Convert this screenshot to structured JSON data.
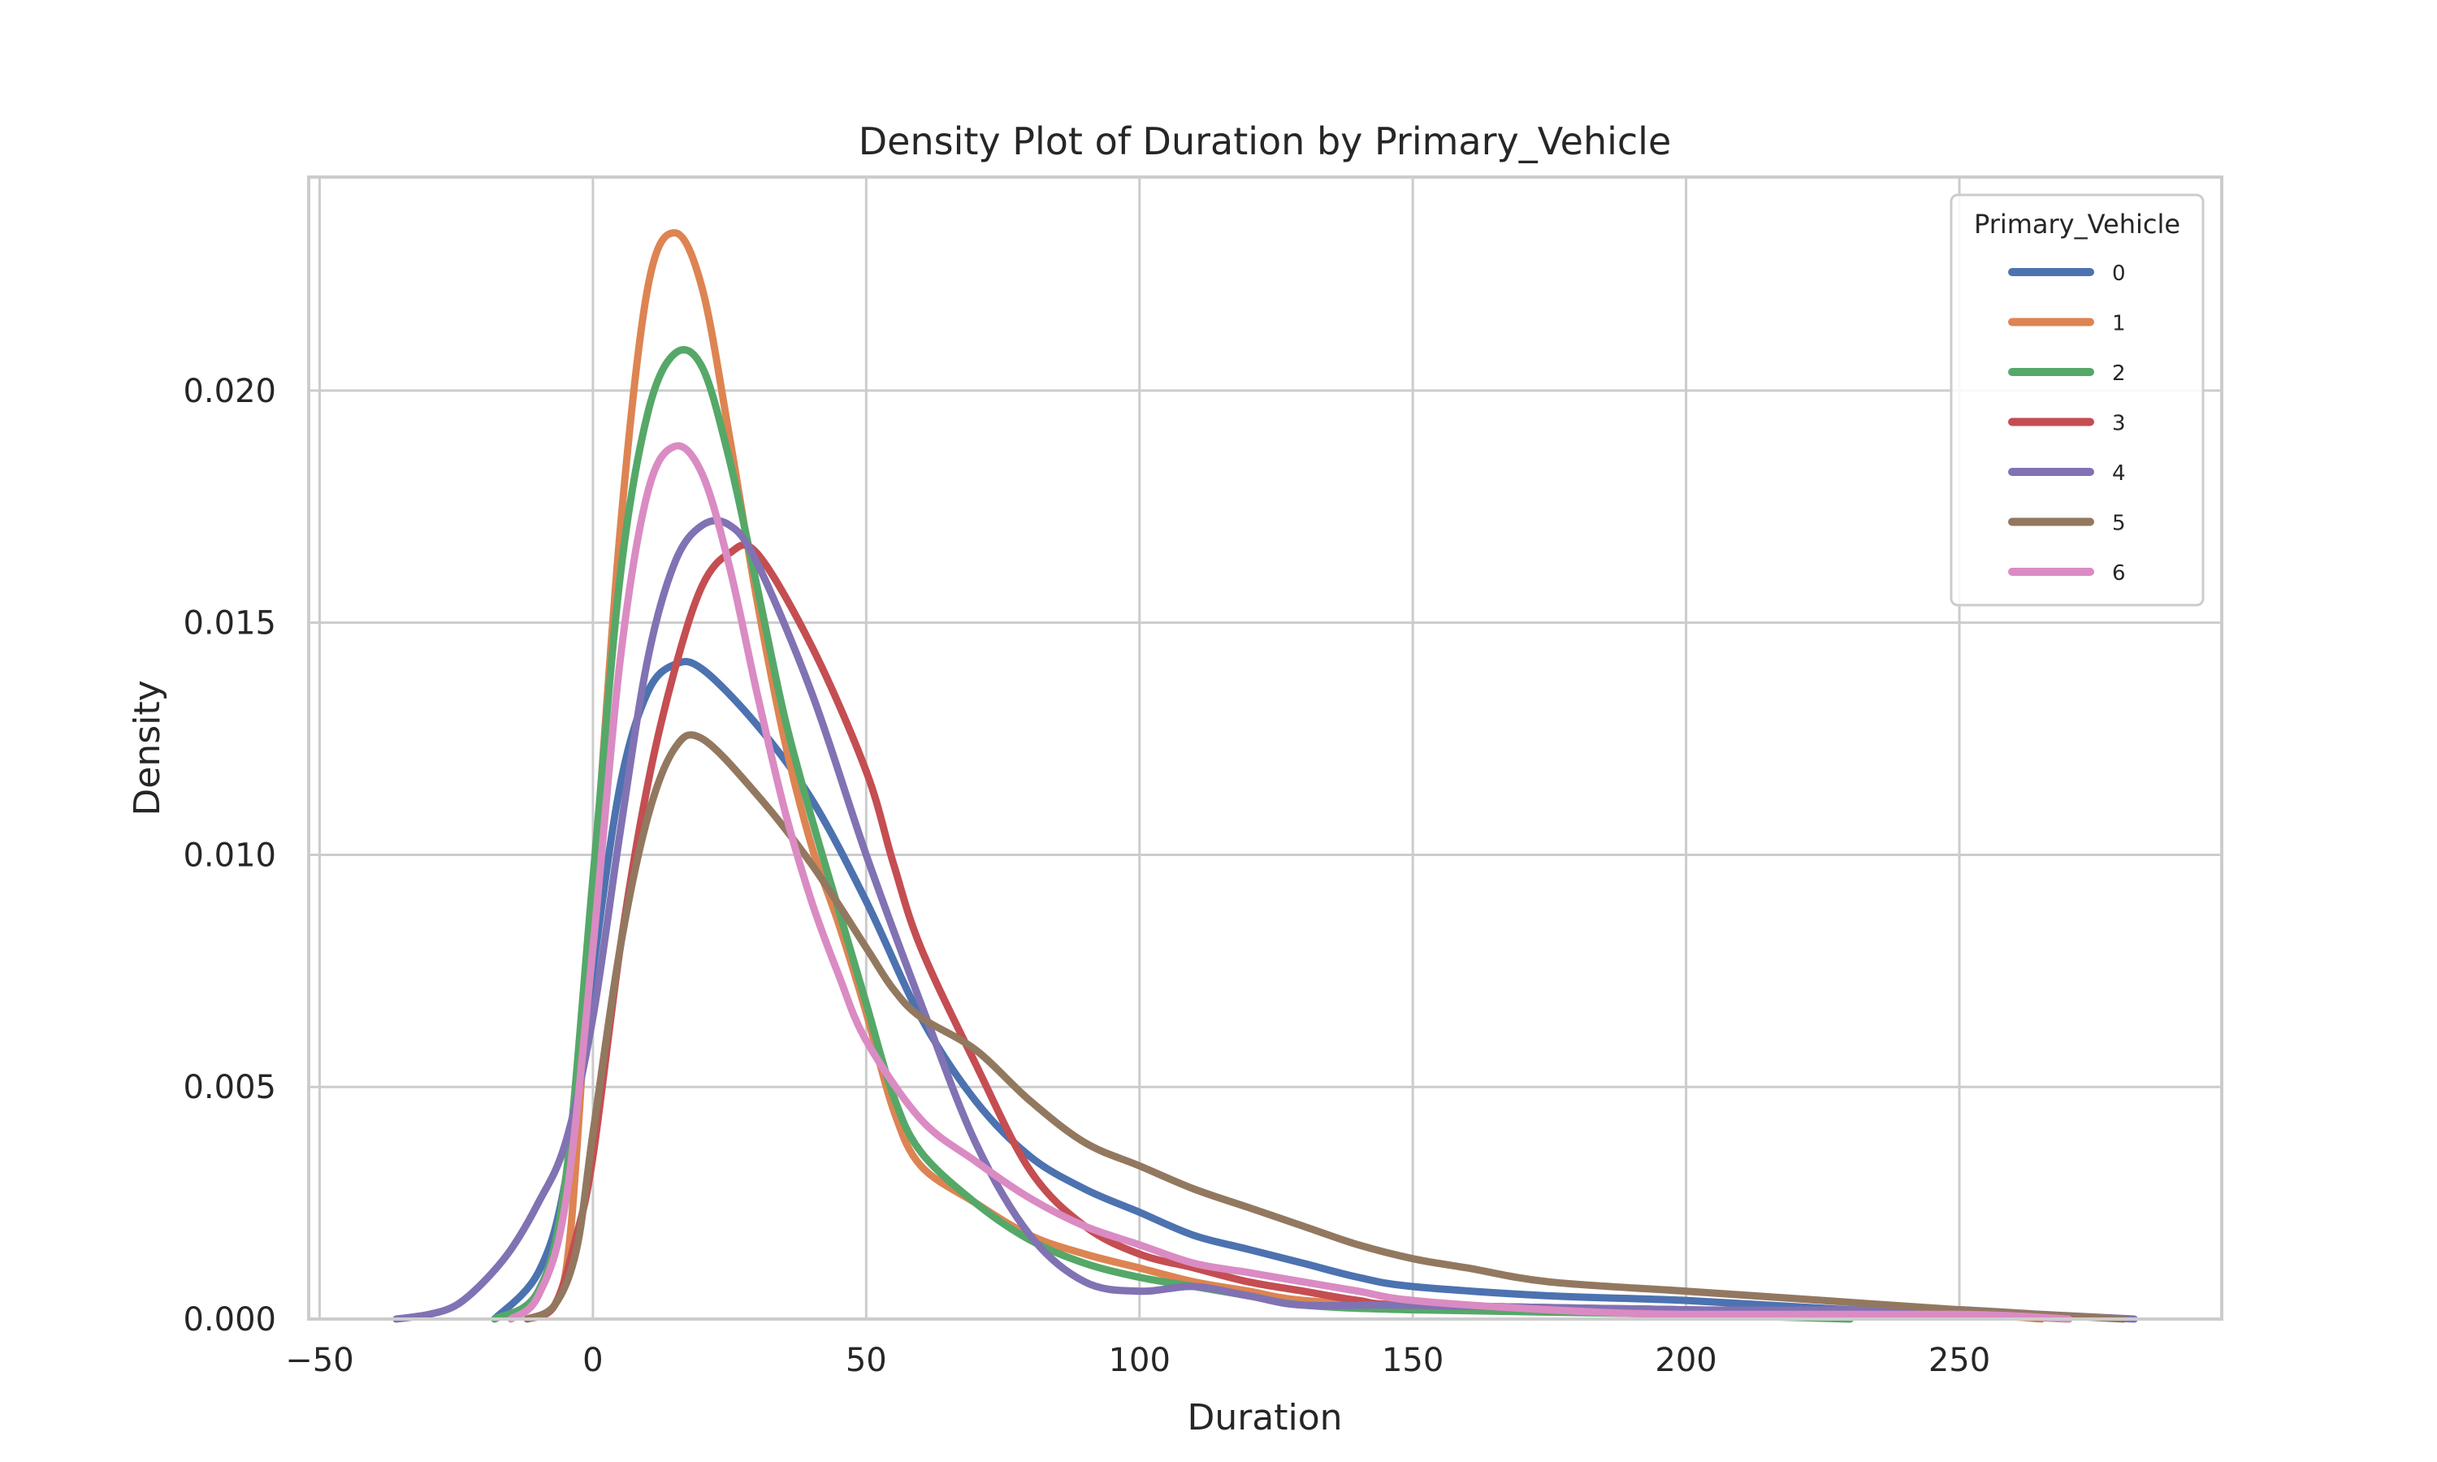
{
  "chart_data": {
    "type": "line",
    "subtype": "kde-density",
    "title": "Density Plot of Duration by Primary_Vehicle",
    "xlabel": "Duration",
    "ylabel": "Density",
    "xlim": [
      -52,
      298
    ],
    "ylim": [
      0,
      0.0246
    ],
    "x_ticks": [
      -50,
      0,
      50,
      100,
      150,
      200,
      250
    ],
    "x_tick_labels": [
      "−50",
      "0",
      "50",
      "100",
      "150",
      "200",
      "250"
    ],
    "y_ticks": [
      0,
      0.005,
      0.01,
      0.015,
      0.02
    ],
    "y_tick_labels": [
      "0.000",
      "0.005",
      "0.010",
      "0.015",
      "0.020"
    ],
    "grid": true,
    "legend": {
      "title": "Primary_Vehicle",
      "placement": "top-right"
    },
    "series": [
      {
        "name": "0",
        "color": "#4c72b0",
        "points": [
          [
            -18,
            0
          ],
          [
            -10,
            0.001
          ],
          [
            -5,
            0.003
          ],
          [
            0,
            0.0075
          ],
          [
            5,
            0.0115
          ],
          [
            10,
            0.0135
          ],
          [
            15,
            0.0141
          ],
          [
            20,
            0.014
          ],
          [
            30,
            0.0128
          ],
          [
            40,
            0.0112
          ],
          [
            50,
            0.009
          ],
          [
            60,
            0.0065
          ],
          [
            70,
            0.0047
          ],
          [
            80,
            0.0035
          ],
          [
            90,
            0.0028
          ],
          [
            100,
            0.0023
          ],
          [
            110,
            0.0018
          ],
          [
            120,
            0.0015
          ],
          [
            130,
            0.0012
          ],
          [
            140,
            0.0009
          ],
          [
            150,
            0.0007
          ],
          [
            175,
            0.0005
          ],
          [
            200,
            0.0004
          ],
          [
            230,
            0.0002
          ],
          [
            255,
            0.0001
          ],
          [
            270,
            0
          ]
        ]
      },
      {
        "name": "1",
        "color": "#dd8452",
        "points": [
          [
            -12,
            0
          ],
          [
            -7,
            0.0003
          ],
          [
            -4,
            0.002
          ],
          [
            0,
            0.009
          ],
          [
            5,
            0.017
          ],
          [
            10,
            0.0222
          ],
          [
            15,
            0.0234
          ],
          [
            20,
            0.0222
          ],
          [
            25,
            0.019
          ],
          [
            30,
            0.0155
          ],
          [
            35,
            0.0125
          ],
          [
            40,
            0.0102
          ],
          [
            45,
            0.0085
          ],
          [
            50,
            0.0066
          ],
          [
            55,
            0.0045
          ],
          [
            60,
            0.0033
          ],
          [
            70,
            0.0025
          ],
          [
            80,
            0.0018
          ],
          [
            90,
            0.0014
          ],
          [
            100,
            0.0011
          ],
          [
            110,
            0.0008
          ],
          [
            120,
            0.0006
          ],
          [
            130,
            0.0004
          ],
          [
            150,
            0.0003
          ],
          [
            200,
            0.0002
          ],
          [
            250,
            0.0001
          ],
          [
            265,
            0
          ]
        ]
      },
      {
        "name": "2",
        "color": "#55a868",
        "points": [
          [
            -18,
            0
          ],
          [
            -10,
            0.0006
          ],
          [
            -5,
            0.003
          ],
          [
            0,
            0.0095
          ],
          [
            5,
            0.016
          ],
          [
            10,
            0.0195
          ],
          [
            15,
            0.0208
          ],
          [
            20,
            0.0205
          ],
          [
            25,
            0.0185
          ],
          [
            30,
            0.0158
          ],
          [
            35,
            0.013
          ],
          [
            40,
            0.0108
          ],
          [
            45,
            0.0088
          ],
          [
            50,
            0.0068
          ],
          [
            55,
            0.0048
          ],
          [
            60,
            0.0036
          ],
          [
            70,
            0.0025
          ],
          [
            80,
            0.0017
          ],
          [
            90,
            0.0012
          ],
          [
            100,
            0.0009
          ],
          [
            110,
            0.0007
          ],
          [
            120,
            0.0005
          ],
          [
            130,
            0.0003
          ],
          [
            150,
            0.0002
          ],
          [
            200,
            0.0001
          ],
          [
            230,
            0
          ]
        ]
      },
      {
        "name": "3",
        "color": "#c44e52",
        "points": [
          [
            -12,
            0
          ],
          [
            -7,
            0.0003
          ],
          [
            -3,
            0.0018
          ],
          [
            0,
            0.0035
          ],
          [
            5,
            0.008
          ],
          [
            10,
            0.0115
          ],
          [
            15,
            0.014
          ],
          [
            20,
            0.0158
          ],
          [
            25,
            0.0165
          ],
          [
            30,
            0.0165
          ],
          [
            40,
            0.0145
          ],
          [
            50,
            0.0118
          ],
          [
            55,
            0.0098
          ],
          [
            60,
            0.008
          ],
          [
            70,
            0.0055
          ],
          [
            80,
            0.0032
          ],
          [
            90,
            0.002
          ],
          [
            100,
            0.0014
          ],
          [
            110,
            0.0011
          ],
          [
            120,
            0.0008
          ],
          [
            130,
            0.0006
          ],
          [
            140,
            0.0004
          ],
          [
            150,
            0.0003
          ],
          [
            200,
            0.0002
          ],
          [
            250,
            0.0001
          ],
          [
            270,
            0
          ]
        ]
      },
      {
        "name": "4",
        "color": "#8172b3",
        "points": [
          [
            -36,
            0
          ],
          [
            -30,
            0.0001
          ],
          [
            -25,
            0.0003
          ],
          [
            -20,
            0.0008
          ],
          [
            -15,
            0.0015
          ],
          [
            -10,
            0.0025
          ],
          [
            -5,
            0.0038
          ],
          [
            0,
            0.0065
          ],
          [
            5,
            0.0105
          ],
          [
            10,
            0.0142
          ],
          [
            15,
            0.0163
          ],
          [
            20,
            0.0171
          ],
          [
            25,
            0.0171
          ],
          [
            30,
            0.0163
          ],
          [
            40,
            0.0135
          ],
          [
            50,
            0.01
          ],
          [
            60,
            0.0068
          ],
          [
            70,
            0.0038
          ],
          [
            80,
            0.0018
          ],
          [
            90,
            0.0008
          ],
          [
            100,
            0.0006
          ],
          [
            110,
            0.0007
          ],
          [
            120,
            0.0005
          ],
          [
            130,
            0.0003
          ],
          [
            150,
            0.0003
          ],
          [
            200,
            0.0002
          ],
          [
            240,
            0.0002
          ],
          [
            250,
            0.0002
          ],
          [
            265,
            0.0001
          ],
          [
            282,
            0
          ]
        ]
      },
      {
        "name": "5",
        "color": "#937860",
        "points": [
          [
            -12,
            0
          ],
          [
            -7,
            0.0003
          ],
          [
            -3,
            0.0015
          ],
          [
            0,
            0.004
          ],
          [
            5,
            0.008
          ],
          [
            10,
            0.0108
          ],
          [
            15,
            0.0123
          ],
          [
            20,
            0.0125
          ],
          [
            30,
            0.0113
          ],
          [
            40,
            0.0098
          ],
          [
            50,
            0.008
          ],
          [
            55,
            0.0071
          ],
          [
            60,
            0.0065
          ],
          [
            70,
            0.0058
          ],
          [
            80,
            0.0047
          ],
          [
            90,
            0.0038
          ],
          [
            100,
            0.0033
          ],
          [
            110,
            0.0028
          ],
          [
            120,
            0.0024
          ],
          [
            130,
            0.002
          ],
          [
            140,
            0.0016
          ],
          [
            150,
            0.0013
          ],
          [
            160,
            0.0011
          ],
          [
            175,
            0.0008
          ],
          [
            200,
            0.0006
          ],
          [
            225,
            0.0004
          ],
          [
            250,
            0.0002
          ],
          [
            280,
            0
          ]
        ]
      },
      {
        "name": "6",
        "color": "#da8bc3",
        "points": [
          [
            -15,
            0
          ],
          [
            -10,
            0.0005
          ],
          [
            -5,
            0.0025
          ],
          [
            0,
            0.008
          ],
          [
            5,
            0.0142
          ],
          [
            10,
            0.0178
          ],
          [
            15,
            0.0188
          ],
          [
            20,
            0.0182
          ],
          [
            25,
            0.0162
          ],
          [
            30,
            0.0135
          ],
          [
            35,
            0.011
          ],
          [
            40,
            0.009
          ],
          [
            45,
            0.0074
          ],
          [
            50,
            0.006
          ],
          [
            60,
            0.0043
          ],
          [
            70,
            0.0034
          ],
          [
            80,
            0.0026
          ],
          [
            90,
            0.002
          ],
          [
            100,
            0.0016
          ],
          [
            110,
            0.0012
          ],
          [
            120,
            0.001
          ],
          [
            130,
            0.0008
          ],
          [
            140,
            0.0006
          ],
          [
            150,
            0.0004
          ],
          [
            175,
            0.0002
          ],
          [
            200,
            0.0001
          ],
          [
            250,
            0.0001
          ],
          [
            270,
            0
          ]
        ]
      }
    ]
  }
}
